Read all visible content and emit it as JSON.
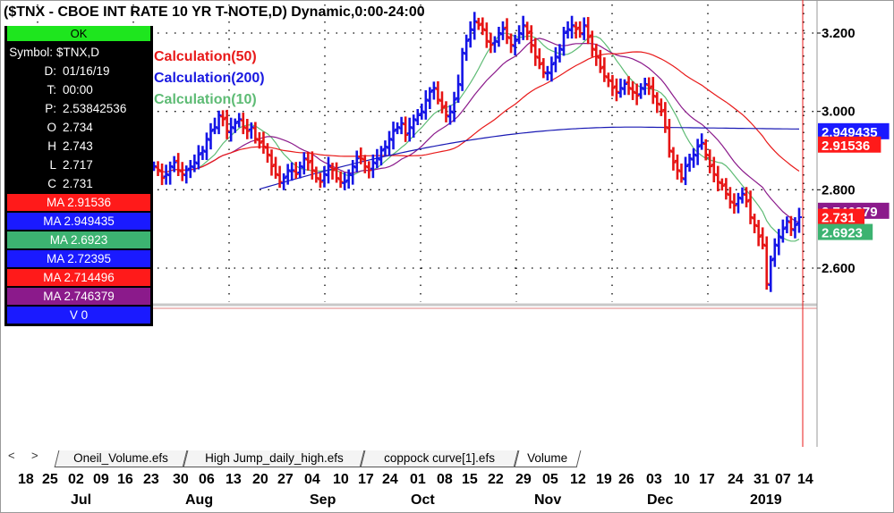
{
  "title": "($TNX - CBOE INT RATE 10 YR T-NOTE,D) Dynamic,0:00-24:00",
  "info_panel": {
    "ok_label": "OK",
    "rows": [
      {
        "label": "Symbol:",
        "value": "$TNX,D"
      },
      {
        "label": "D:",
        "value": "01/16/19"
      },
      {
        "label": "T:",
        "value": "00:00"
      },
      {
        "label": "P:",
        "value": "2.53842536"
      },
      {
        "label": "O",
        "value": "2.734"
      },
      {
        "label": "H",
        "value": "2.743"
      },
      {
        "label": "L",
        "value": "2.717"
      },
      {
        "label": "C",
        "value": "2.731"
      }
    ],
    "ma_rows": [
      {
        "text": "MA 2.91536",
        "bg": "#ff1a1a",
        "fg": "#ffffff"
      },
      {
        "text": "MA 2.949435",
        "bg": "#1a1aff",
        "fg": "#ffffff"
      },
      {
        "text": "MA 2.6923",
        "bg": "#3cb371",
        "fg": "#ffffff"
      },
      {
        "text": "MA 2.72395",
        "bg": "#1a1aff",
        "fg": "#ffffff"
      },
      {
        "text": "MA 2.714496",
        "bg": "#ff1a1a",
        "fg": "#ffffff"
      },
      {
        "text": "MA 2.746379",
        "bg": "#8b1a8b",
        "fg": "#ffffff"
      },
      {
        "text": "V 0",
        "bg": "#1a1aff",
        "fg": "#ffffff"
      }
    ]
  },
  "tabs": {
    "prev_icon": "<",
    "next_icon": ">",
    "items": [
      "Oneil_Volume.efs",
      "High Jump_daily_high.efs",
      "coppock curve[1].efs",
      "Volume"
    ],
    "active_index": 3
  },
  "chart_data": {
    "type": "ohlc",
    "ylim": [
      2.5,
      3.3
    ],
    "yticks": [
      "3.200",
      "3.000",
      "2.800",
      "2.600"
    ],
    "ytick_values": [
      3.2,
      3.0,
      2.8,
      2.6
    ],
    "grid": true,
    "x_day_labels": [
      "18",
      "25",
      "02",
      "09",
      "16",
      "23",
      "30",
      "06",
      "13",
      "20",
      "27",
      "04",
      "10",
      "17",
      "24",
      "01",
      "08",
      "15",
      "22",
      "29",
      "05",
      "12",
      "19",
      "26",
      "03",
      "10",
      "17",
      "24",
      "31",
      "07",
      "14"
    ],
    "x_month_labels": [
      "Jul",
      "Aug",
      "Sep",
      "Oct",
      "Nov",
      "Dec",
      "2019"
    ],
    "calc_labels": [
      {
        "text": "Calculation(50)",
        "color": "#e81919"
      },
      {
        "text": "Calculation(200)",
        "color": "#1919e0"
      },
      {
        "text": "Calculation(10)",
        "color": "#5dbb74"
      }
    ],
    "price_tags": [
      {
        "text": "2.949435",
        "value": 2.949435,
        "bg": "#1a1aff",
        "fg": "#ffffff"
      },
      {
        "text": "2.91536",
        "value": 2.91536,
        "bg": "#ff1a1a",
        "fg": "#ffffff"
      },
      {
        "text": "2.746379",
        "value": 2.746379,
        "bg": "#8b1a8b",
        "fg": "#ffffff"
      },
      {
        "text": "2.731",
        "value": 2.731,
        "bg": "#ff1a1a",
        "fg": "#ffffff"
      },
      {
        "text": "2.6923",
        "value": 2.6923,
        "bg": "#3cb371",
        "fg": "#ffffff"
      }
    ],
    "closes": [
      2.86,
      2.85,
      2.83,
      2.84,
      2.86,
      2.87,
      2.85,
      2.84,
      2.85,
      2.86,
      2.87,
      2.89,
      2.9,
      2.93,
      2.95,
      2.96,
      2.99,
      2.98,
      2.95,
      2.96,
      2.97,
      2.98,
      2.96,
      2.95,
      2.96,
      2.93,
      2.92,
      2.91,
      2.89,
      2.86,
      2.84,
      2.82,
      2.83,
      2.85,
      2.85,
      2.84,
      2.86,
      2.88,
      2.87,
      2.85,
      2.83,
      2.82,
      2.84,
      2.86,
      2.85,
      2.83,
      2.82,
      2.82,
      2.84,
      2.86,
      2.88,
      2.88,
      2.86,
      2.85,
      2.87,
      2.88,
      2.9,
      2.91,
      2.93,
      2.95,
      2.96,
      2.97,
      2.94,
      2.96,
      2.98,
      2.99,
      3.0,
      3.03,
      3.05,
      3.06,
      3.03,
      3.01,
      2.99,
      3.0,
      3.03,
      3.07,
      3.15,
      3.18,
      3.21,
      3.23,
      3.22,
      3.21,
      3.18,
      3.17,
      3.18,
      3.2,
      3.21,
      3.19,
      3.17,
      3.18,
      3.2,
      3.22,
      3.2,
      3.17,
      3.14,
      3.12,
      3.1,
      3.1,
      3.12,
      3.14,
      3.16,
      3.2,
      3.21,
      3.22,
      3.21,
      3.2,
      3.22,
      3.19,
      3.16,
      3.14,
      3.11,
      3.09,
      3.08,
      3.06,
      3.05,
      3.06,
      3.07,
      3.06,
      3.05,
      3.04,
      3.06,
      3.07,
      3.06,
      3.04,
      3.02,
      3.0,
      2.96,
      2.9,
      2.87,
      2.85,
      2.83,
      2.86,
      2.88,
      2.89,
      2.91,
      2.92,
      2.89,
      2.86,
      2.84,
      2.82,
      2.81,
      2.79,
      2.77,
      2.76,
      2.78,
      2.79,
      2.77,
      2.73,
      2.71,
      2.68,
      2.66,
      2.56,
      2.62,
      2.66,
      2.68,
      2.7,
      2.72,
      2.7,
      2.71,
      2.73
    ]
  }
}
